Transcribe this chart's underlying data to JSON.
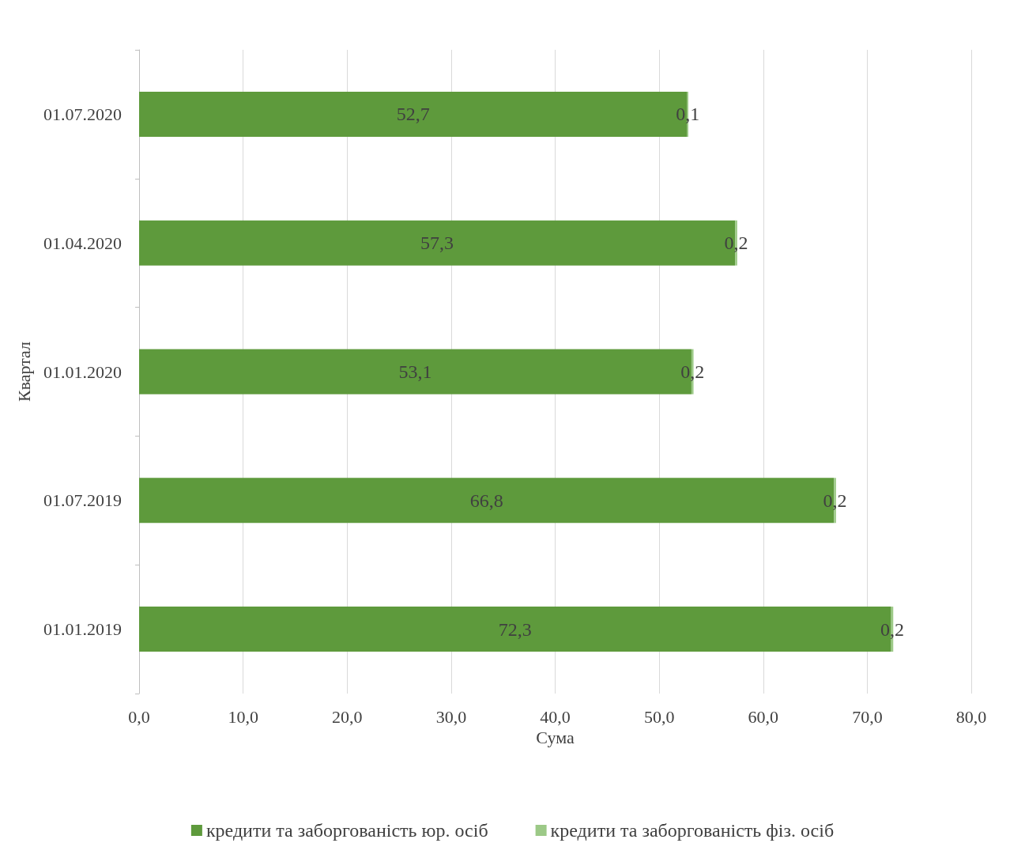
{
  "chart_data": {
    "type": "bar",
    "orientation": "horizontal",
    "stacked": true,
    "xlabel": "Сума",
    "ylabel": "Квартал",
    "categories": [
      "01.07.2020",
      "01.04.2020",
      "01.01.2020",
      "01.07.2019",
      "01.01.2019"
    ],
    "series": [
      {
        "name": "кредити та заборгованість юр. осіб",
        "color": "#5e9a3c",
        "values": [
          52.7,
          57.3,
          53.1,
          66.8,
          72.3
        ],
        "value_labels": [
          "52,7",
          "57,3",
          "53,1",
          "66,8",
          "72,3"
        ]
      },
      {
        "name": "кредити та заборгованість фіз. осіб",
        "color": "#9cc987",
        "values": [
          0.1,
          0.2,
          0.2,
          0.2,
          0.2
        ],
        "value_labels": [
          "0,1",
          "0,2",
          "0,2",
          "0,2",
          "0,2"
        ]
      }
    ],
    "xlim": [
      0,
      80
    ],
    "xticks": [
      {
        "value": 0,
        "label": "0,0"
      },
      {
        "value": 10,
        "label": "10,0"
      },
      {
        "value": 20,
        "label": "20,0"
      },
      {
        "value": 30,
        "label": "30,0"
      },
      {
        "value": 40,
        "label": "40,0"
      },
      {
        "value": 50,
        "label": "50,0"
      },
      {
        "value": 60,
        "label": "60,0"
      },
      {
        "value": 70,
        "label": "70,0"
      },
      {
        "value": 80,
        "label": "80,0"
      }
    ],
    "grid": "x",
    "legend": "bottom"
  }
}
